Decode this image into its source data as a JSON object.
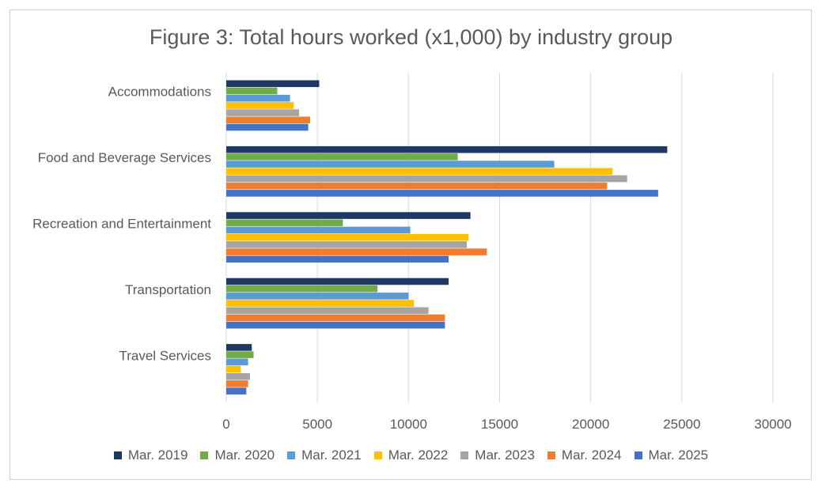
{
  "chart_data": {
    "type": "bar",
    "orientation": "horizontal",
    "title": "Figure 3: Total hours worked (x1,000) by industry group",
    "categories": [
      "Accommodations",
      "Food and Beverage Services",
      "Recreation and Entertainment",
      "Transportation",
      "Travel Services"
    ],
    "xlim": [
      0,
      30000
    ],
    "xticks": [
      "0",
      "5000",
      "10000",
      "15000",
      "20000",
      "25000",
      "30000"
    ],
    "grid": "vertical",
    "legend": "bottom",
    "series": [
      {
        "name": "Mar. 2019",
        "color": "#203864",
        "values": [
          5100,
          24200,
          13400,
          12200,
          1400
        ]
      },
      {
        "name": "Mar. 2020",
        "color": "#70ad47",
        "values": [
          2800,
          12700,
          6400,
          8300,
          1500
        ]
      },
      {
        "name": "Mar. 2021",
        "color": "#5b9bd5",
        "values": [
          3500,
          18000,
          10100,
          10000,
          1200
        ]
      },
      {
        "name": "Mar. 2022",
        "color": "#ffc000",
        "values": [
          3700,
          21200,
          13300,
          10300,
          800
        ]
      },
      {
        "name": "Mar. 2023",
        "color": "#a5a5a5",
        "values": [
          4000,
          22000,
          13200,
          11100,
          1300
        ]
      },
      {
        "name": "Mar. 2024",
        "color": "#ed7d31",
        "values": [
          4600,
          20900,
          14300,
          12000,
          1200
        ]
      },
      {
        "name": "Mar. 2025",
        "color": "#4472c4",
        "values": [
          4500,
          23700,
          12200,
          12000,
          1100
        ]
      }
    ]
  }
}
